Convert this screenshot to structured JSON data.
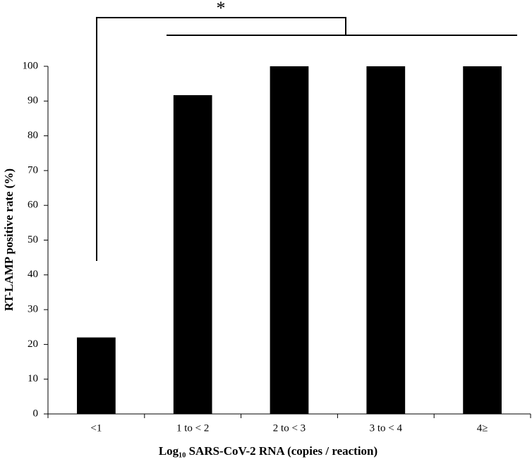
{
  "chart_data": {
    "type": "bar",
    "ylabel": "RT-LAMP positive rate (%)",
    "xlabel": "Log₁₀ SARS-CoV-2 RNA (copies / reaction)",
    "categories": [
      "<1",
      "1 to < 2",
      "2 to < 3",
      "3 to < 4",
      "4≥"
    ],
    "values": [
      22,
      91.7,
      100,
      100,
      100
    ],
    "color": "#000000",
    "ylim": [
      0,
      100
    ],
    "yticks": [
      0,
      10,
      20,
      30,
      40,
      50,
      60,
      70,
      80,
      90,
      100
    ],
    "grid": false,
    "annotation": "*"
  }
}
